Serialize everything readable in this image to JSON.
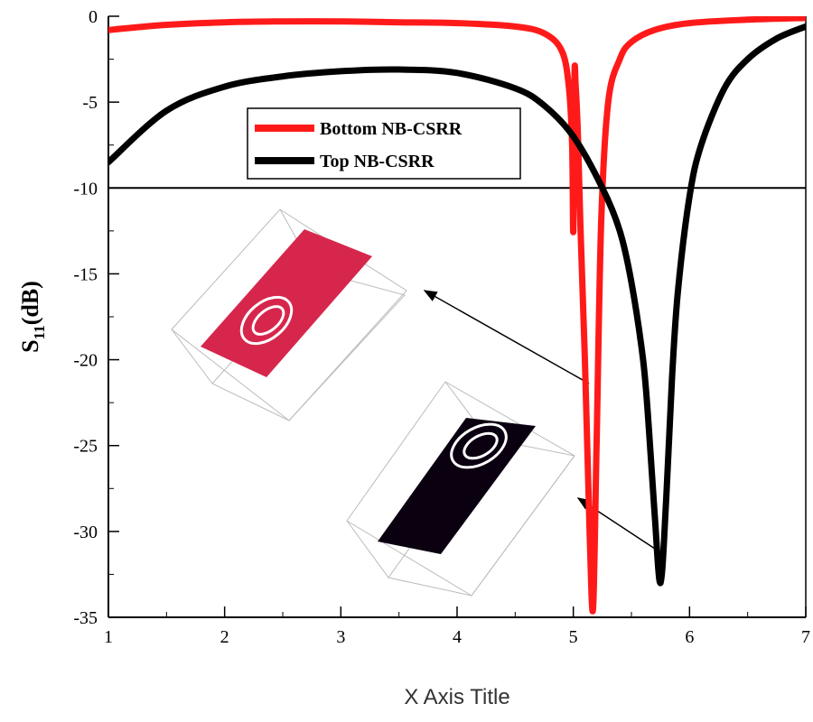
{
  "chart_data": {
    "type": "line",
    "xlabel": "X Axis Title",
    "ylabel": {
      "main": "S",
      "sub": "11",
      "unit": "(dB)"
    },
    "xlim": [
      1,
      7
    ],
    "ylim": [
      -35,
      0
    ],
    "xticks": [
      1,
      2,
      3,
      4,
      5,
      6,
      7
    ],
    "yticks": [
      0,
      -5,
      -10,
      -15,
      -20,
      -25,
      -30,
      -35
    ],
    "reference_line": -10,
    "grid": false,
    "legend_placement": "top-center",
    "series": [
      {
        "name": "Bottom NB-CSRR",
        "color": "#ff1a1a",
        "x": [
          1.0,
          1.5,
          2.0,
          2.5,
          3.0,
          3.5,
          4.0,
          4.5,
          4.75,
          4.9,
          4.96,
          4.99,
          5.0,
          5.01,
          5.02,
          5.04,
          5.06,
          5.1,
          5.14,
          5.17,
          5.2,
          5.24,
          5.3,
          5.4,
          5.5,
          5.7,
          6.0,
          6.5,
          7.0
        ],
        "y": [
          -0.8,
          -0.5,
          -0.35,
          -0.3,
          -0.3,
          -0.35,
          -0.4,
          -0.6,
          -1.0,
          -2.0,
          -4.0,
          -7.5,
          -12.5,
          -3.5,
          -4.0,
          -7.0,
          -12.0,
          -20.0,
          -30.0,
          -34.5,
          -25.0,
          -12.0,
          -5.0,
          -2.5,
          -1.5,
          -0.8,
          -0.4,
          -0.2,
          -0.1
        ]
      },
      {
        "name": "Top NB-CSRR",
        "color": "#000000",
        "x": [
          1.0,
          1.5,
          2.0,
          2.5,
          3.0,
          3.5,
          4.0,
          4.5,
          4.75,
          5.0,
          5.25,
          5.4,
          5.5,
          5.6,
          5.65,
          5.7,
          5.75,
          5.8,
          5.85,
          5.9,
          6.0,
          6.1,
          6.3,
          6.5,
          6.75,
          7.0
        ],
        "y": [
          -8.5,
          -5.5,
          -4.1,
          -3.5,
          -3.2,
          -3.1,
          -3.3,
          -4.2,
          -5.2,
          -7.0,
          -10.0,
          -12.5,
          -15.5,
          -20.0,
          -24.0,
          -29.0,
          -33.0,
          -28.0,
          -21.0,
          -16.0,
          -10.5,
          -7.5,
          -4.2,
          -2.5,
          -1.3,
          -0.6
        ]
      }
    ]
  }
}
